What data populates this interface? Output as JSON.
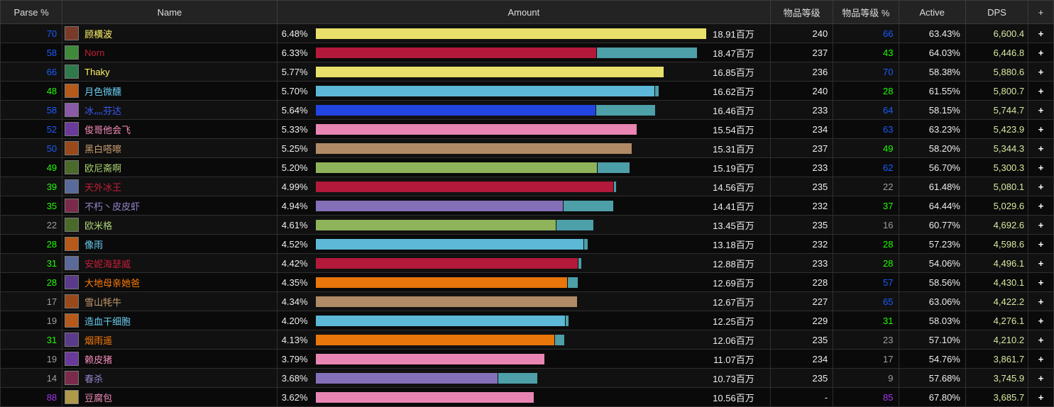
{
  "headers": {
    "parse": "Parse %",
    "name": "Name",
    "amount": "Amount",
    "ilvl": "物品等级",
    "ilvl_pct": "物品等级 %",
    "active": "Active",
    "dps": "DPS",
    "plus": "+"
  },
  "max_amount": 18.91,
  "rows": [
    {
      "parse": "70",
      "parse_color": "#1a5cff",
      "name": "顾横波",
      "name_color": "#fff468",
      "pct": "6.48%",
      "total": "18.91百万",
      "amount": 18.91,
      "primary": 1.0,
      "bar_color": "#e8e06a",
      "ilvl": "240",
      "ilvl_pct": "66",
      "ilvl_pct_color": "#1a5cff",
      "active": "63.43%",
      "dps": "6,600.4",
      "icon_color": "#7a3a2a"
    },
    {
      "parse": "58",
      "parse_color": "#1a5cff",
      "name": "Norn",
      "name_color": "#c41e3a",
      "pct": "6.33%",
      "total": "18.47百万",
      "amount": 18.47,
      "primary": 0.735,
      "bar_color": "#b3193a",
      "ilvl": "237",
      "ilvl_pct": "43",
      "ilvl_pct_color": "#1eff00",
      "active": "64.03%",
      "dps": "6,446.8",
      "icon_color": "#3e8a3a"
    },
    {
      "parse": "66",
      "parse_color": "#1a5cff",
      "name": "Thaky",
      "name_color": "#fff468",
      "pct": "5.77%",
      "total": "16.85百万",
      "amount": 16.85,
      "primary": 1.0,
      "bar_color": "#e8e06a",
      "ilvl": "236",
      "ilvl_pct": "70",
      "ilvl_pct_color": "#1a5cff",
      "active": "58.38%",
      "dps": "5,880.6",
      "icon_color": "#2e7a4a"
    },
    {
      "parse": "48",
      "parse_color": "#1eff00",
      "name": "月色微醺",
      "name_color": "#69ccf0",
      "pct": "5.70%",
      "total": "16.62百万",
      "amount": 16.62,
      "primary": 0.987,
      "bar_color": "#5cb8d6",
      "ilvl": "240",
      "ilvl_pct": "28",
      "ilvl_pct_color": "#1eff00",
      "active": "61.55%",
      "dps": "5,800.7",
      "icon_color": "#b55a1a"
    },
    {
      "parse": "58",
      "parse_color": "#1a5cff",
      "name": "冰灬芬达",
      "name_color": "#3a5cff",
      "pct": "5.64%",
      "total": "16.46百万",
      "amount": 16.46,
      "primary": 0.824,
      "bar_color": "#2244e0",
      "ilvl": "233",
      "ilvl_pct": "64",
      "ilvl_pct_color": "#1a5cff",
      "active": "58.15%",
      "dps": "5,744.7",
      "icon_color": "#8a5aa8"
    },
    {
      "parse": "52",
      "parse_color": "#1a5cff",
      "name": "俊哥他会飞",
      "name_color": "#f58cba",
      "pct": "5.33%",
      "total": "15.54百万",
      "amount": 15.54,
      "primary": 1.0,
      "bar_color": "#e985b3",
      "ilvl": "234",
      "ilvl_pct": "63",
      "ilvl_pct_color": "#1a5cff",
      "active": "63.23%",
      "dps": "5,423.9",
      "icon_color": "#6a3a9a"
    },
    {
      "parse": "50",
      "parse_color": "#1a5cff",
      "name": "黑白嗒嚓",
      "name_color": "#c79c6e",
      "pct": "5.25%",
      "total": "15.31百万",
      "amount": 15.31,
      "primary": 1.0,
      "bar_color": "#b08a66",
      "ilvl": "237",
      "ilvl_pct": "49",
      "ilvl_pct_color": "#1eff00",
      "active": "58.20%",
      "dps": "5,344.3",
      "icon_color": "#9a4a1a"
    },
    {
      "parse": "49",
      "parse_color": "#1eff00",
      "name": "欧尼斋啊",
      "name_color": "#abd473",
      "pct": "5.20%",
      "total": "15.19百万",
      "amount": 15.19,
      "primary": 0.897,
      "bar_color": "#8fb35a",
      "ilvl": "233",
      "ilvl_pct": "62",
      "ilvl_pct_color": "#1a5cff",
      "active": "56.70%",
      "dps": "5,300.3",
      "icon_color": "#4a6a2a"
    },
    {
      "parse": "39",
      "parse_color": "#1eff00",
      "name": "天外冰王",
      "name_color": "#c41e3a",
      "pct": "4.99%",
      "total": "14.56百万",
      "amount": 14.56,
      "primary": 0.99,
      "bar_color": "#b3193a",
      "ilvl": "235",
      "ilvl_pct": "22",
      "ilvl_pct_color": "#9d9d9d",
      "active": "61.48%",
      "dps": "5,080.1",
      "icon_color": "#5a6a9a"
    },
    {
      "parse": "35",
      "parse_color": "#1eff00",
      "name": "不朽丶皮皮虾",
      "name_color": "#9482c9",
      "pct": "4.94%",
      "total": "14.41百万",
      "amount": 14.41,
      "primary": 0.83,
      "bar_color": "#8470b8",
      "ilvl": "232",
      "ilvl_pct": "37",
      "ilvl_pct_color": "#1eff00",
      "active": "64.44%",
      "dps": "5,029.6",
      "icon_color": "#7a2a4a"
    },
    {
      "parse": "22",
      "parse_color": "#9d9d9d",
      "name": "欧米格",
      "name_color": "#abd473",
      "pct": "4.61%",
      "total": "13.45百万",
      "amount": 13.45,
      "primary": 0.865,
      "bar_color": "#8fb35a",
      "ilvl": "235",
      "ilvl_pct": "16",
      "ilvl_pct_color": "#9d9d9d",
      "active": "60.77%",
      "dps": "4,692.6",
      "icon_color": "#4a6a2a"
    },
    {
      "parse": "28",
      "parse_color": "#1eff00",
      "name": "像雨",
      "name_color": "#69ccf0",
      "pct": "4.52%",
      "total": "13.18百万",
      "amount": 13.18,
      "primary": 0.983,
      "bar_color": "#5cb8d6",
      "ilvl": "232",
      "ilvl_pct": "28",
      "ilvl_pct_color": "#1eff00",
      "active": "57.23%",
      "dps": "4,598.6",
      "icon_color": "#b55a1a"
    },
    {
      "parse": "31",
      "parse_color": "#1eff00",
      "name": "安妮海瑟威",
      "name_color": "#c41e3a",
      "pct": "4.42%",
      "total": "12.88百万",
      "amount": 12.88,
      "primary": 0.986,
      "bar_color": "#b3193a",
      "ilvl": "233",
      "ilvl_pct": "28",
      "ilvl_pct_color": "#1eff00",
      "active": "54.06%",
      "dps": "4,496.1",
      "icon_color": "#5a6a9a"
    },
    {
      "parse": "28",
      "parse_color": "#1eff00",
      "name": "大地母亲她爸",
      "name_color": "#ff7d0a",
      "pct": "4.35%",
      "total": "12.69百万",
      "amount": 12.69,
      "primary": 0.961,
      "bar_color": "#e8760a",
      "ilvl": "228",
      "ilvl_pct": "57",
      "ilvl_pct_color": "#1a5cff",
      "active": "58.56%",
      "dps": "4,430.1",
      "icon_color": "#5a3a8a"
    },
    {
      "parse": "17",
      "parse_color": "#9d9d9d",
      "name": "雪山牦牛",
      "name_color": "#c79c6e",
      "pct": "4.34%",
      "total": "12.67百万",
      "amount": 12.67,
      "primary": 1.0,
      "bar_color": "#b08a66",
      "ilvl": "227",
      "ilvl_pct": "65",
      "ilvl_pct_color": "#1a5cff",
      "active": "63.06%",
      "dps": "4,422.2",
      "icon_color": "#9a4a1a"
    },
    {
      "parse": "19",
      "parse_color": "#9d9d9d",
      "name": "造血干细胞",
      "name_color": "#69ccf0",
      "pct": "4.20%",
      "total": "12.25百万",
      "amount": 12.25,
      "primary": 0.985,
      "bar_color": "#5cb8d6",
      "ilvl": "229",
      "ilvl_pct": "31",
      "ilvl_pct_color": "#1eff00",
      "active": "58.03%",
      "dps": "4,276.1",
      "icon_color": "#b55a1a"
    },
    {
      "parse": "31",
      "parse_color": "#1eff00",
      "name": "烟雨遥",
      "name_color": "#ff7d0a",
      "pct": "4.13%",
      "total": "12.06百万",
      "amount": 12.06,
      "primary": 0.96,
      "bar_color": "#e8760a",
      "ilvl": "235",
      "ilvl_pct": "23",
      "ilvl_pct_color": "#9d9d9d",
      "active": "57.10%",
      "dps": "4,210.2",
      "icon_color": "#5a3a8a"
    },
    {
      "parse": "19",
      "parse_color": "#9d9d9d",
      "name": "赖皮猪",
      "name_color": "#f58cba",
      "pct": "3.79%",
      "total": "11.07百万",
      "amount": 11.07,
      "primary": 1.0,
      "bar_color": "#e985b3",
      "ilvl": "234",
      "ilvl_pct": "17",
      "ilvl_pct_color": "#9d9d9d",
      "active": "54.76%",
      "dps": "3,861.7",
      "icon_color": "#6a3a9a"
    },
    {
      "parse": "14",
      "parse_color": "#9d9d9d",
      "name": "春杀",
      "name_color": "#9482c9",
      "pct": "3.68%",
      "total": "10.73百万",
      "amount": 10.73,
      "primary": 0.82,
      "bar_color": "#8470b8",
      "ilvl": "235",
      "ilvl_pct": "9",
      "ilvl_pct_color": "#9d9d9d",
      "active": "57.68%",
      "dps": "3,745.9",
      "icon_color": "#7a2a4a"
    },
    {
      "parse": "88",
      "parse_color": "#a335ee",
      "name": "豆腐包",
      "name_color": "#f58cba",
      "pct": "3.62%",
      "total": "10.56百万",
      "amount": 10.56,
      "primary": 1.0,
      "bar_color": "#e985b3",
      "ilvl": "-",
      "ilvl_pct": "85",
      "ilvl_pct_color": "#a335ee",
      "active": "67.80%",
      "dps": "3,685.7",
      "icon_color": "#b09a4a"
    }
  ]
}
